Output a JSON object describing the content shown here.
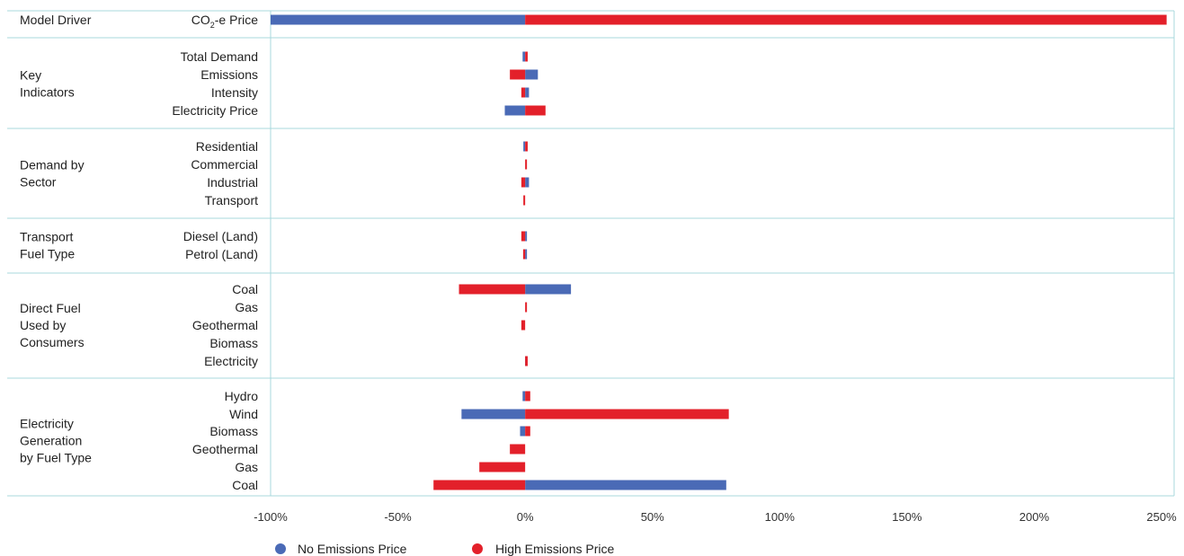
{
  "chart_data": {
    "type": "bar",
    "orientation": "horizontal",
    "xlim": [
      -100,
      250
    ],
    "x_ticks": [
      "-100%",
      "-50%",
      "0%",
      "50%",
      "100%",
      "150%",
      "200%",
      "250%"
    ],
    "x_tick_values": [
      -100,
      -50,
      0,
      50,
      100,
      150,
      200,
      250
    ],
    "grid": false,
    "legend_placement": "bottom-left",
    "colors": {
      "no_price": "#4a6ab6",
      "high_price": "#e3202a",
      "frame": "#a9d9dc"
    },
    "series": [
      {
        "name": "No Emissions Price",
        "color": "#4a6ab6"
      },
      {
        "name": "High Emissions Price",
        "color": "#e3202a"
      }
    ],
    "groups": [
      {
        "label_lines": [
          "Model Driver"
        ],
        "items": [
          {
            "label": "CO",
            "label_sub": "2",
            "label_suffix": "-e Price",
            "no_price": -100,
            "high_price": 252
          }
        ]
      },
      {
        "label_lines": [
          "Key",
          "Indicators"
        ],
        "items": [
          {
            "label": "Total Demand",
            "no_price": -1,
            "high_price": 1
          },
          {
            "label": "Emissions",
            "no_price": 5,
            "high_price": -6
          },
          {
            "label": "Intensity",
            "no_price": 1.5,
            "high_price": -1.5
          },
          {
            "label": "Electricity Price",
            "no_price": -8,
            "high_price": 8
          }
        ]
      },
      {
        "label_lines": [
          "Demand by",
          "Sector"
        ],
        "items": [
          {
            "label": "Residential",
            "no_price": -0.5,
            "high_price": 1
          },
          {
            "label": "Commercial",
            "no_price": 0,
            "high_price": 0.5
          },
          {
            "label": "Industrial",
            "no_price": 1.5,
            "high_price": -1.5
          },
          {
            "label": "Transport",
            "no_price": 0,
            "high_price": -0.7
          }
        ]
      },
      {
        "label_lines": [
          "Transport",
          "Fuel Type"
        ],
        "items": [
          {
            "label": "Diesel (Land)",
            "no_price": 0.5,
            "high_price": -1.5
          },
          {
            "label": "Petrol (Land)",
            "no_price": 0.5,
            "high_price": -0.8
          }
        ]
      },
      {
        "label_lines": [
          "Direct Fuel",
          "Used by",
          "Consumers"
        ],
        "items": [
          {
            "label": "Coal",
            "no_price": 18,
            "high_price": -26
          },
          {
            "label": "Gas",
            "no_price": 0,
            "high_price": 0.5
          },
          {
            "label": "Geothermal",
            "no_price": 0,
            "high_price": -1.5
          },
          {
            "label": "Biomass",
            "no_price": 0,
            "high_price": 0
          },
          {
            "label": "Electricity",
            "no_price": 0.5,
            "high_price": 1
          }
        ]
      },
      {
        "label_lines": [
          "Electricity",
          "Generation",
          "by Fuel Type"
        ],
        "items": [
          {
            "label": "Hydro",
            "no_price": -1,
            "high_price": 2
          },
          {
            "label": "Wind",
            "no_price": -25,
            "high_price": 80
          },
          {
            "label": "Biomass",
            "no_price": -2,
            "high_price": 2
          },
          {
            "label": "Geothermal",
            "no_price": 0,
            "high_price": -6
          },
          {
            "label": "Gas",
            "no_price": 0,
            "high_price": -18
          },
          {
            "label": "Coal",
            "no_price": 79,
            "high_price": -36
          }
        ]
      }
    ]
  }
}
